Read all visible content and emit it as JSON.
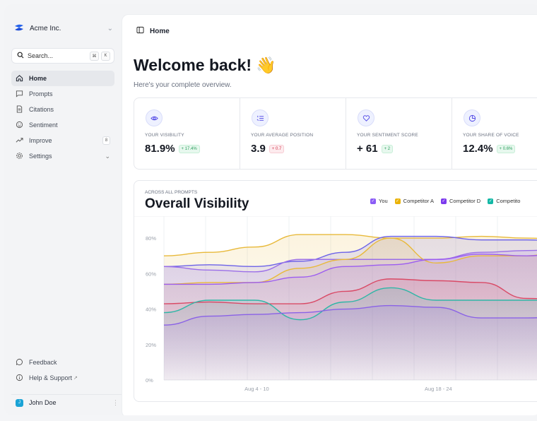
{
  "sidebar": {
    "org_name": "Acme Inc.",
    "search_placeholder": "Search...",
    "search_kbd_1": "⌘",
    "search_kbd_2": "K",
    "items": [
      {
        "label": "Home",
        "icon": "home-icon",
        "active": true
      },
      {
        "label": "Prompts",
        "icon": "message-icon"
      },
      {
        "label": "Citations",
        "icon": "document-icon"
      },
      {
        "label": "Sentiment",
        "icon": "sentiment-icon"
      },
      {
        "label": "Improve",
        "icon": "trend-icon",
        "badge": "8"
      },
      {
        "label": "Settings",
        "icon": "gear-icon"
      }
    ],
    "bottom": [
      {
        "label": "Feedback",
        "icon": "chat-icon"
      },
      {
        "label": "Help & Support",
        "icon": "info-icon"
      }
    ],
    "user": {
      "name": "John Doe",
      "initial": "J"
    }
  },
  "header": {
    "breadcrumb": "Home"
  },
  "page": {
    "title": "Welcome back! 👋",
    "subtitle": "Here's your complete overview."
  },
  "stats": [
    {
      "label": "YOUR VISIBILITY",
      "value": "81.9%",
      "delta": "+ 17.4%",
      "trend": "up",
      "icon": "eye-icon"
    },
    {
      "label": "YOUR AVERAGE POSITION",
      "value": "3.9",
      "delta": "+ 0.7",
      "trend": "down",
      "icon": "list-ordered-icon"
    },
    {
      "label": "YOUR SENTIMENT SCORE",
      "value": "+ 61",
      "delta": "+ 2",
      "trend": "up",
      "icon": "heart-icon"
    },
    {
      "label": "YOUR SHARE OF VOICE",
      "value": "12.4%",
      "delta": "+ 0.6%",
      "trend": "up",
      "icon": "pie-icon"
    }
  ],
  "colors": {
    "accent": "#5b5fe3",
    "you": "#8b5cf6",
    "competitor_a": "#eab308",
    "competitor_d": "#7c3aed",
    "competitor_teal": "#14b8a6",
    "red_series": "#e11d48"
  },
  "chart_data": {
    "type": "area",
    "eyebrow": "ACROSS ALL PROMPTS",
    "title": "Overall Visibility",
    "legend": [
      {
        "name": "You",
        "color": "#8b5cf6"
      },
      {
        "name": "Competitor A",
        "color": "#eab308"
      },
      {
        "name": "Competitor D",
        "color": "#7c3aed"
      },
      {
        "name": "Competito",
        "color": "#14b8a6"
      }
    ],
    "x_ticks": [
      "Aug 4 - 10",
      "Aug 18 - 24"
    ],
    "y_ticks": [
      "0%",
      "20%",
      "40%",
      "60%",
      "80%"
    ],
    "ylim": [
      0,
      90
    ],
    "x": [
      0,
      1,
      2,
      3,
      4,
      5,
      6,
      7,
      8,
      9
    ],
    "series": [
      {
        "name": "Competitor A",
        "color": "#e8b93a",
        "values": [
          70,
          72,
          75,
          82,
          82,
          80,
          80,
          81,
          80,
          79
        ]
      },
      {
        "name": "You",
        "color": "#6d63e8",
        "values": [
          64,
          65,
          64,
          67,
          72,
          81,
          81,
          79,
          79,
          78
        ]
      },
      {
        "name": "",
        "color": "#9b6fe8",
        "values": [
          64,
          62,
          61,
          68,
          68,
          68,
          68,
          72,
          73,
          74
        ]
      },
      {
        "name": "",
        "color": "#e8b93a",
        "values": [
          54,
          55,
          55,
          63,
          68,
          80,
          66,
          70,
          70,
          76
        ]
      },
      {
        "name": "",
        "color": "#9c5cf0",
        "values": [
          54,
          54,
          55,
          58,
          64,
          65,
          68,
          71,
          70,
          72
        ]
      },
      {
        "name": "",
        "color": "#d94a66",
        "values": [
          43,
          44,
          43,
          43,
          50,
          57,
          56,
          55,
          46,
          45
        ]
      },
      {
        "name": "Competito",
        "color": "#2fb6a6",
        "values": [
          38,
          45,
          45,
          34,
          44,
          52,
          45,
          45,
          45,
          45
        ]
      },
      {
        "name": "",
        "color": "#8a62e6",
        "values": [
          31,
          36,
          37,
          38,
          40,
          42,
          41,
          35,
          35,
          36
        ]
      }
    ]
  }
}
